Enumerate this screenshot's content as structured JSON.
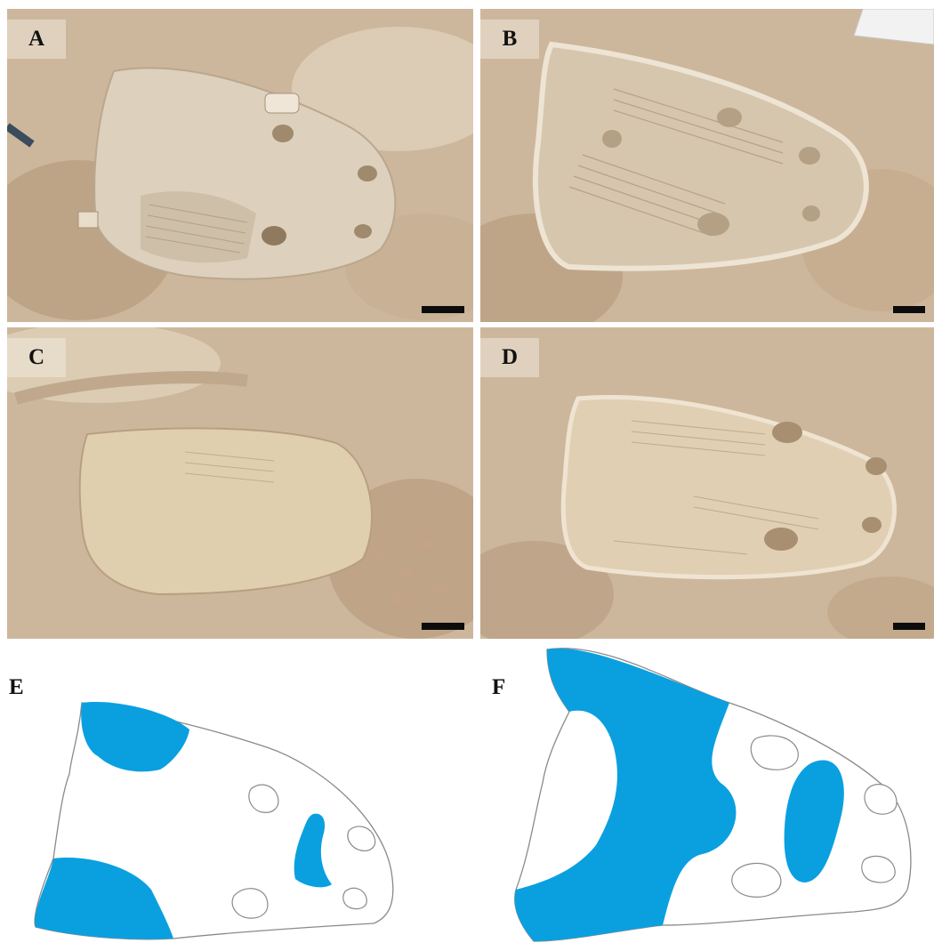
{
  "figure": {
    "panels": [
      {
        "id": "A",
        "label": "A",
        "kind": "photograph",
        "scale_bar": true
      },
      {
        "id": "B",
        "label": "B",
        "kind": "photograph",
        "scale_bar": true
      },
      {
        "id": "C",
        "label": "C",
        "kind": "photograph",
        "scale_bar": true
      },
      {
        "id": "D",
        "label": "D",
        "kind": "photograph",
        "scale_bar": true
      },
      {
        "id": "E",
        "label": "E",
        "kind": "line-drawing"
      },
      {
        "id": "F",
        "label": "F",
        "kind": "line-drawing"
      }
    ],
    "colors": {
      "highlight_fill": "#0aa0e0",
      "outline_stroke": "#8a8a8a",
      "rock_base": "#cdb79c",
      "rock_light": "#e4d6c2",
      "rock_shadow": "#a88e72",
      "scale_bar": "#0c0c0c"
    }
  }
}
